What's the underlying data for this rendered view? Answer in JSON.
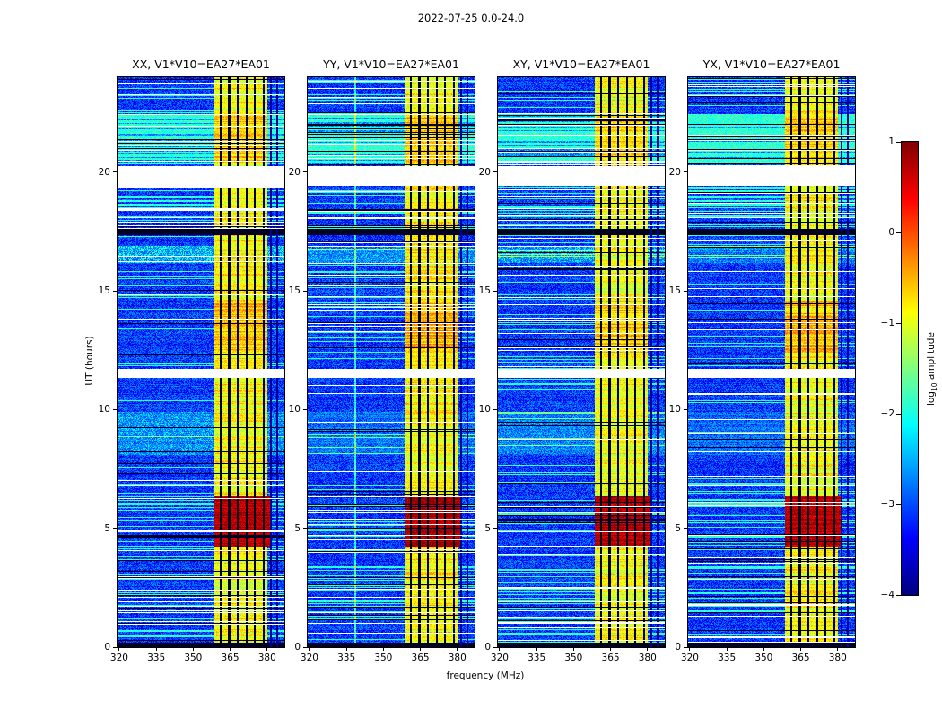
{
  "chart_data": {
    "type": "heatmap",
    "title": "2022-07-25 0.0-24.0",
    "xlabel": "frequency (MHz)",
    "ylabel": "UT (hours)",
    "x_range": [
      319.3,
      387.0
    ],
    "y_range": [
      0,
      24
    ],
    "x_ticks": [
      320,
      335,
      350,
      365,
      380
    ],
    "y_ticks": [
      0,
      5,
      10,
      15,
      20
    ],
    "colorbar": {
      "label": "log10 amplitude",
      "label_parts": {
        "base": "log",
        "sub": "10",
        "rest": " amplitude"
      },
      "min": -4,
      "max": 1,
      "ticks": [
        1,
        0,
        -1,
        -2,
        -3,
        -4
      ],
      "tick_labels": [
        "1",
        "0",
        "−1",
        "−2",
        "−3",
        "−4"
      ],
      "colormap": "jet"
    },
    "panels": [
      {
        "title": "XX, V1*V10=EA27*EA01",
        "seed": 101,
        "band_gain": 1.0,
        "blob_gain": 1.0,
        "patch_gain": 1.3
      },
      {
        "title": "YY, V1*V10=EA27*EA01",
        "seed": 202,
        "band_gain": 1.05,
        "blob_gain": 1.15,
        "patch_gain": 0.8,
        "light_vline": 338.5
      },
      {
        "title": "XY, V1*V10=EA27*EA01",
        "seed": 303,
        "band_gain": 0.95,
        "blob_gain": 1.05,
        "patch_gain": 1.0
      },
      {
        "title": "YX, V1*V10=EA27*EA01",
        "seed": 404,
        "band_gain": 1.0,
        "blob_gain": 1.0,
        "patch_gain": 0.7
      }
    ],
    "features": {
      "background_level": -3.1,
      "rfi_band": {
        "f_lo": 358.8,
        "f_hi": 380.2,
        "level": -0.9
      },
      "band_grid_lines_mhz": [
        361.2,
        364.7,
        368.2,
        371.7,
        375.2,
        378.7
      ],
      "right_vlines_mhz": [
        381.6,
        384.2
      ],
      "burst": {
        "t_lo": 4.2,
        "t_hi": 6.35,
        "f_lo": 358.8,
        "f_hi": 381.5,
        "level": 0.5
      },
      "data_gaps_hours": [
        [
          11.33,
          11.72
        ],
        [
          19.42,
          20.28
        ]
      ],
      "black_rows_hours": [
        [
          0.0,
          0.18
        ],
        [
          17.35,
          17.62
        ]
      ],
      "cyan_band_hours": [
        20.35,
        22.45
      ],
      "cyan_patches_hours": [
        [
          8.1,
          9.9,
          0.5
        ],
        [
          16.2,
          16.9,
          0.8
        ]
      ],
      "band_boost_hours": [
        [
          12.4,
          14.6,
          0.3
        ],
        [
          20.4,
          22.4,
          0.25
        ]
      ],
      "stripe_density": [
        [
          0,
          7,
          0.55
        ],
        [
          7,
          11.3,
          0.22
        ],
        [
          11.3,
          17.3,
          0.4
        ],
        [
          17.3,
          19.45,
          0.8
        ],
        [
          19.45,
          22.5,
          0.8
        ],
        [
          22.5,
          24,
          0.45
        ]
      ]
    }
  }
}
